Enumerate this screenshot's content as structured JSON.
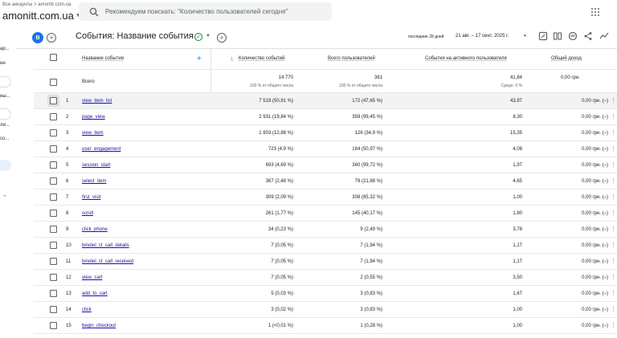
{
  "header": {
    "breadcrumb": "Все аккаунты > amonitt.com.ua",
    "account": "amonitt.com.ua",
    "search_placeholder": "Рекомендуем поискать: \"Количество пользователей сегодня\""
  },
  "sidebar": {
    "fragments": [
      "ар...",
      "нн",
      "ны...",
      "ли...",
      "со..."
    ]
  },
  "toolbar": {
    "badge": "B",
    "title": "События: Название события",
    "date_label": "последние 28 дней",
    "date_range": "21 авг. – 17 сент. 2025 г."
  },
  "table": {
    "columns": {
      "name": "Название события",
      "event_count": "Количество событий",
      "total_users": "Всего пользователей",
      "per_user": "События на активного пользователя",
      "revenue": "Общий доход"
    },
    "totals": {
      "label": "Всего",
      "event_count": "14 770",
      "event_count_sub": "100 % от общего числа",
      "total_users": "361",
      "total_users_sub": "100 % от общего числа",
      "per_user": "41,84",
      "per_user_sub": "Средн. 0 %",
      "revenue": "0,00 грн."
    },
    "rows": [
      {
        "idx": "1",
        "name": "view_item_list",
        "count": "7 519 (50,91 %)",
        "users": "172 (47,65 %)",
        "per_user": "43,97",
        "revenue": "0,00 грн. (–)"
      },
      {
        "idx": "2",
        "name": "page_view",
        "count": "2 931 (19,84 %)",
        "users": "359 (99,45 %)",
        "per_user": "8,30",
        "revenue": "0,00 грн. (–)"
      },
      {
        "idx": "3",
        "name": "view_item",
        "count": "1 903 (12,88 %)",
        "users": "126 (34,9 %)",
        "per_user": "15,35",
        "revenue": "0,00 грн. (–)"
      },
      {
        "idx": "4",
        "name": "user_engagement",
        "count": "723 (4,9 %)",
        "users": "184 (50,97 %)",
        "per_user": "4,08",
        "revenue": "0,00 грн. (–)"
      },
      {
        "idx": "5",
        "name": "session_start",
        "count": "693 (4,69 %)",
        "users": "360 (99,72 %)",
        "per_user": "1,97",
        "revenue": "0,00 грн. (–)"
      },
      {
        "idx": "6",
        "name": "select_item",
        "count": "367 (2,48 %)",
        "users": "79 (21,88 %)",
        "per_user": "4,65",
        "revenue": "0,00 грн. (–)"
      },
      {
        "idx": "7",
        "name": "first_visit",
        "count": "309 (2,09 %)",
        "users": "308 (85,32 %)",
        "per_user": "1,00",
        "revenue": "0,00 грн. (–)"
      },
      {
        "idx": "8",
        "name": "scroll",
        "count": "261 (1,77 %)",
        "users": "145 (40,17 %)",
        "per_user": "1,80",
        "revenue": "0,00 грн. (–)"
      },
      {
        "idx": "9",
        "name": "click_phone",
        "count": "34 (0,23 %)",
        "users": "9 (2,49 %)",
        "per_user": "3,78",
        "revenue": "0,00 грн. (–)"
      },
      {
        "idx": "10",
        "name": "binotel_ct_call_details",
        "count": "7 (0,05 %)",
        "users": "7 (1,94 %)",
        "per_user": "1,17",
        "revenue": "0,00 грн. (–)"
      },
      {
        "idx": "11",
        "name": "binotel_ct_call_received",
        "count": "7 (0,05 %)",
        "users": "7 (1,94 %)",
        "per_user": "1,17",
        "revenue": "0,00 грн. (–)"
      },
      {
        "idx": "12",
        "name": "view_cart",
        "count": "7 (0,05 %)",
        "users": "2 (0,55 %)",
        "per_user": "3,50",
        "revenue": "0,00 грн. (–)"
      },
      {
        "idx": "13",
        "name": "add_to_cart",
        "count": "5 (0,03 %)",
        "users": "3 (0,83 %)",
        "per_user": "1,67",
        "revenue": "0,00 грн. (–)"
      },
      {
        "idx": "14",
        "name": "click",
        "count": "3 (0,02 %)",
        "users": "3 (0,83 %)",
        "per_user": "1,00",
        "revenue": "0,00 грн. (–)"
      },
      {
        "idx": "15",
        "name": "begin_checkout",
        "count": "1 (<0,01 %)",
        "users": "1 (0,28 %)",
        "per_user": "1,00",
        "revenue": "0,00 грн. (–)"
      }
    ]
  }
}
